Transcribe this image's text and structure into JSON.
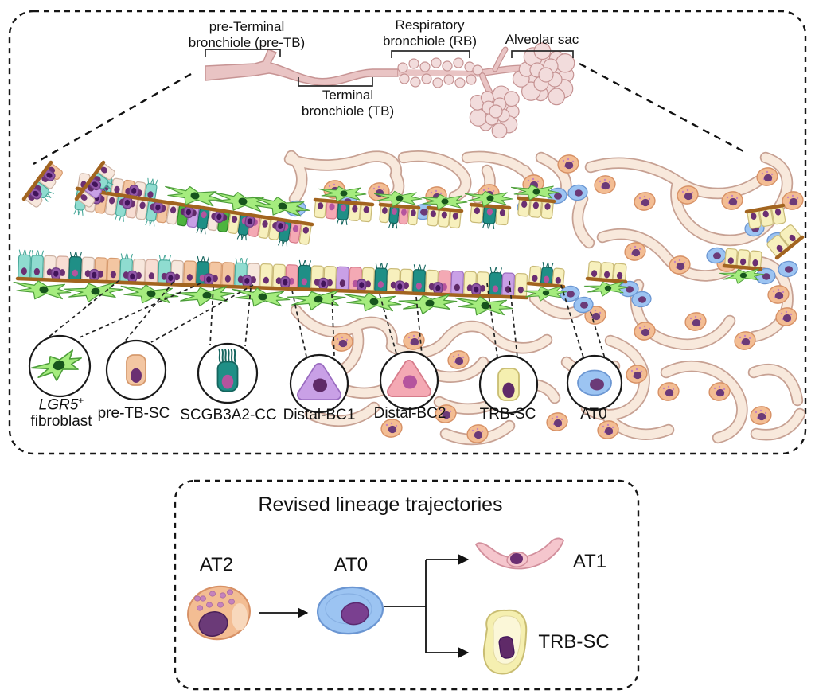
{
  "panel_top": {
    "region_labels": {
      "pre_tb_l1": "pre-Terminal",
      "pre_tb_l2": "bronchiole (pre-TB)",
      "tb_l1": "Terminal",
      "tb_l2": "bronchiole (TB)",
      "rb_l1": "Respiratory",
      "rb_l2": "bronchiole (RB)",
      "alveolar_sac": "Alveolar sac"
    },
    "callouts": [
      {
        "id": "lgr5-fibroblast",
        "gene": "LGR5",
        "sup": "+",
        "label": "fibroblast",
        "color": "#a5ec7e"
      },
      {
        "id": "pre-tb-sc",
        "label": "pre-TB-SC",
        "color": "#f3c6a2"
      },
      {
        "id": "scgb3a2-cc",
        "label": "SCGB3A2-CC",
        "color": "#1f8f86"
      },
      {
        "id": "distal-bc1",
        "label": "Distal-BC1",
        "color": "#c9a0e6"
      },
      {
        "id": "distal-bc2",
        "label": "Distal-BC2",
        "color": "#f4a9b4"
      },
      {
        "id": "trb-sc",
        "label": "TRB-SC",
        "color": "#f5efb0"
      },
      {
        "id": "at0",
        "label": "AT0",
        "color": "#9cc4f2"
      }
    ]
  },
  "lineage_panel": {
    "title": "Revised lineage trajectories",
    "nodes": [
      {
        "id": "at2",
        "label": "AT2",
        "color": "#f3bd93"
      },
      {
        "id": "at0",
        "label": "AT0",
        "color": "#9cc4f2"
      },
      {
        "id": "at1",
        "label": "AT1",
        "color": "#f5c6cd"
      },
      {
        "id": "trb-sc",
        "label": "TRB-SC",
        "color": "#f5efb0"
      }
    ]
  },
  "palette": {
    "membrane": "#a2641f",
    "alv_fill": "#f8e9dc",
    "alv_stroke": "#c7a193",
    "sac_fill": "#f2dcdc",
    "sac_stroke": "#c59292",
    "tube_fill": "#e9c4c4",
    "tube_stroke": "#c79494",
    "outline": "#1a1a1a",
    "cells": {
      "cream": {
        "f": "#f7e7dd",
        "s": "#ccb2a3",
        "n": "#6b2f72"
      },
      "peach": {
        "f": "#f3c6a2",
        "s": "#d69a6e",
        "n": "#6b2f72"
      },
      "pink_pale": {
        "f": "#f7ddd3",
        "s": "#d2a99a",
        "n": "#6b2f72"
      },
      "teal_l": {
        "f": "#8fdcd0",
        "s": "#4aa89a",
        "n": "#6b2f72",
        "cilia": true
      },
      "teal_d": {
        "f": "#1f8f86",
        "s": "#15655e",
        "n": "#b5549e",
        "cilia": true
      },
      "green": {
        "f": "#4db43e",
        "s": "#2e8527",
        "n": "#5f2a68"
      },
      "yellow": {
        "f": "#f7f0bd",
        "s": "#c9ba77",
        "n": "#6b2f72"
      },
      "pink": {
        "f": "#f4a9b4",
        "s": "#d67b8a",
        "n": "#b5549e"
      },
      "lilac": {
        "f": "#c9a0e6",
        "s": "#9a6cc0",
        "n": "#5f2a68"
      },
      "purpleB": {
        "f": "#9257a8",
        "s": "#6b3a80",
        "n": "#41145a"
      },
      "fibro": {
        "f": "#a5ec7e",
        "s": "#4d9e3a",
        "n": "#17551c"
      },
      "at2": {
        "f": "#f3bd93",
        "s": "#d79166",
        "n": "#6b3a78",
        "dot": "#c583bd"
      },
      "at0": {
        "f": "#9cc4f2",
        "s": "#6b96d2",
        "n": "#6b3a78"
      },
      "at1": {
        "f": "#f5c6cd",
        "s": "#d28f9c",
        "n": "#6b2f72"
      },
      "trb": {
        "f": "#f5efb0",
        "s": "#c9bd72",
        "n": "#5f2a68"
      }
    }
  }
}
